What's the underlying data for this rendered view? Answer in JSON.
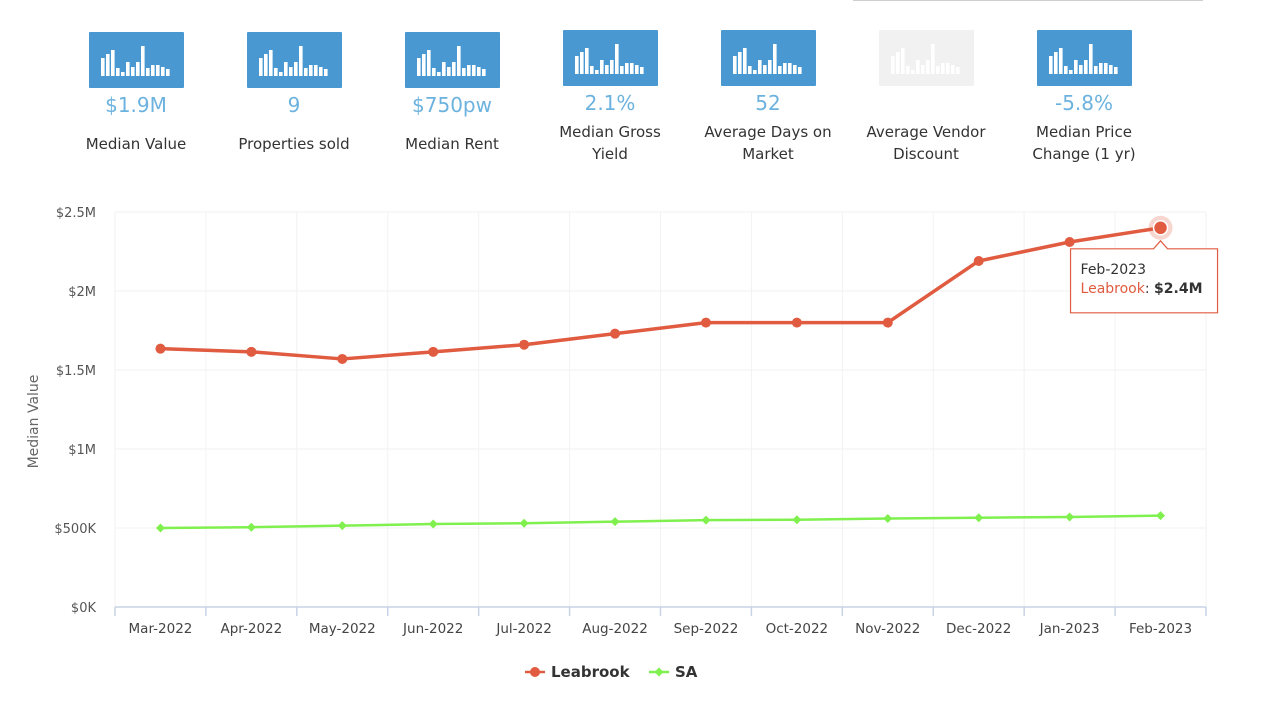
{
  "stats": [
    {
      "value": "$1.9M",
      "label": "Median Value",
      "icon": "bar-chart-icon",
      "enabled": true
    },
    {
      "value": "9",
      "label": "Properties sold",
      "icon": "bar-chart-icon",
      "enabled": true
    },
    {
      "value": "$750pw",
      "label": "Median Rent",
      "icon": "bar-chart-icon",
      "enabled": true
    },
    {
      "value": "2.1%",
      "label": "Median Gross Yield",
      "icon": "bar-chart-icon",
      "enabled": true
    },
    {
      "value": "52",
      "label": "Average Days on Market",
      "icon": "bar-chart-icon",
      "enabled": true
    },
    {
      "value": "",
      "label": "Average Vendor Discount",
      "icon": "bar-chart-icon",
      "enabled": false
    },
    {
      "value": "-5.8%",
      "label": "Median Price Change (1 yr)",
      "icon": "bar-chart-icon",
      "enabled": true
    }
  ],
  "colors": {
    "leabrook": "#e05b40",
    "sa": "#7ff04e",
    "stat_value": "#6cb2df",
    "icon_bg": "#4a98d1"
  },
  "chart_data": {
    "type": "line",
    "title": "",
    "xlabel": "",
    "ylabel": "Median Value",
    "categories": [
      "Mar-2022",
      "Apr-2022",
      "May-2022",
      "Jun-2022",
      "Jul-2022",
      "Aug-2022",
      "Sep-2022",
      "Oct-2022",
      "Nov-2022",
      "Dec-2022",
      "Jan-2023",
      "Feb-2023"
    ],
    "ylim": [
      0,
      2500000
    ],
    "yticks": [
      0,
      500000,
      1000000,
      1500000,
      2000000,
      2500000
    ],
    "ytick_labels": [
      "$0K",
      "$500K",
      "$1M",
      "$1.5M",
      "$2M",
      "$2.5M"
    ],
    "series": [
      {
        "name": "Leabrook",
        "color": "#e05b40",
        "marker": "circle",
        "values": [
          1635000,
          1615000,
          1570000,
          1615000,
          1660000,
          1730000,
          1800000,
          1800000,
          1800000,
          2190000,
          2310000,
          2400000
        ]
      },
      {
        "name": "SA",
        "color": "#7ff04e",
        "marker": "diamond",
        "values": [
          500000,
          505000,
          515000,
          525000,
          530000,
          540000,
          550000,
          552000,
          560000,
          565000,
          570000,
          578000
        ]
      }
    ],
    "legend": {
      "position": "bottom-center",
      "entries": [
        "Leabrook",
        "SA"
      ]
    },
    "tooltip": {
      "category": "Feb-2023",
      "series": "Leabrook",
      "value_label": "$2.4M"
    },
    "grid": true
  }
}
